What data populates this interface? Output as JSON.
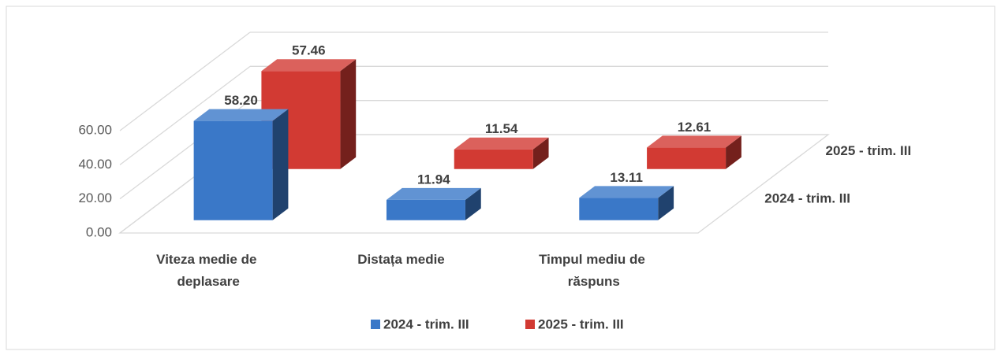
{
  "chart_data": {
    "type": "bar3d",
    "categories": [
      "Viteza medie de deplasare",
      "Distața medie",
      "Timpul mediu de răspuns"
    ],
    "series": [
      {
        "name": "2024 - trim. III",
        "color": "#3a78c8",
        "values": [
          58.2,
          11.94,
          13.11
        ],
        "value_labels": [
          "58.20",
          "11.94",
          "13.11"
        ]
      },
      {
        "name": "2025 - trim. III",
        "color": "#d23a33",
        "values": [
          57.46,
          11.54,
          12.61
        ],
        "value_labels": [
          "57.46",
          "11.54",
          "12.61"
        ]
      }
    ],
    "ylim": [
      0,
      60
    ],
    "yticks": [
      {
        "value": 0,
        "label": "0.00"
      },
      {
        "value": 20,
        "label": "20.00"
      },
      {
        "value": 40,
        "label": "40.00"
      },
      {
        "value": 60,
        "label": "60.00"
      }
    ],
    "grid": true,
    "legend": "bottom"
  }
}
